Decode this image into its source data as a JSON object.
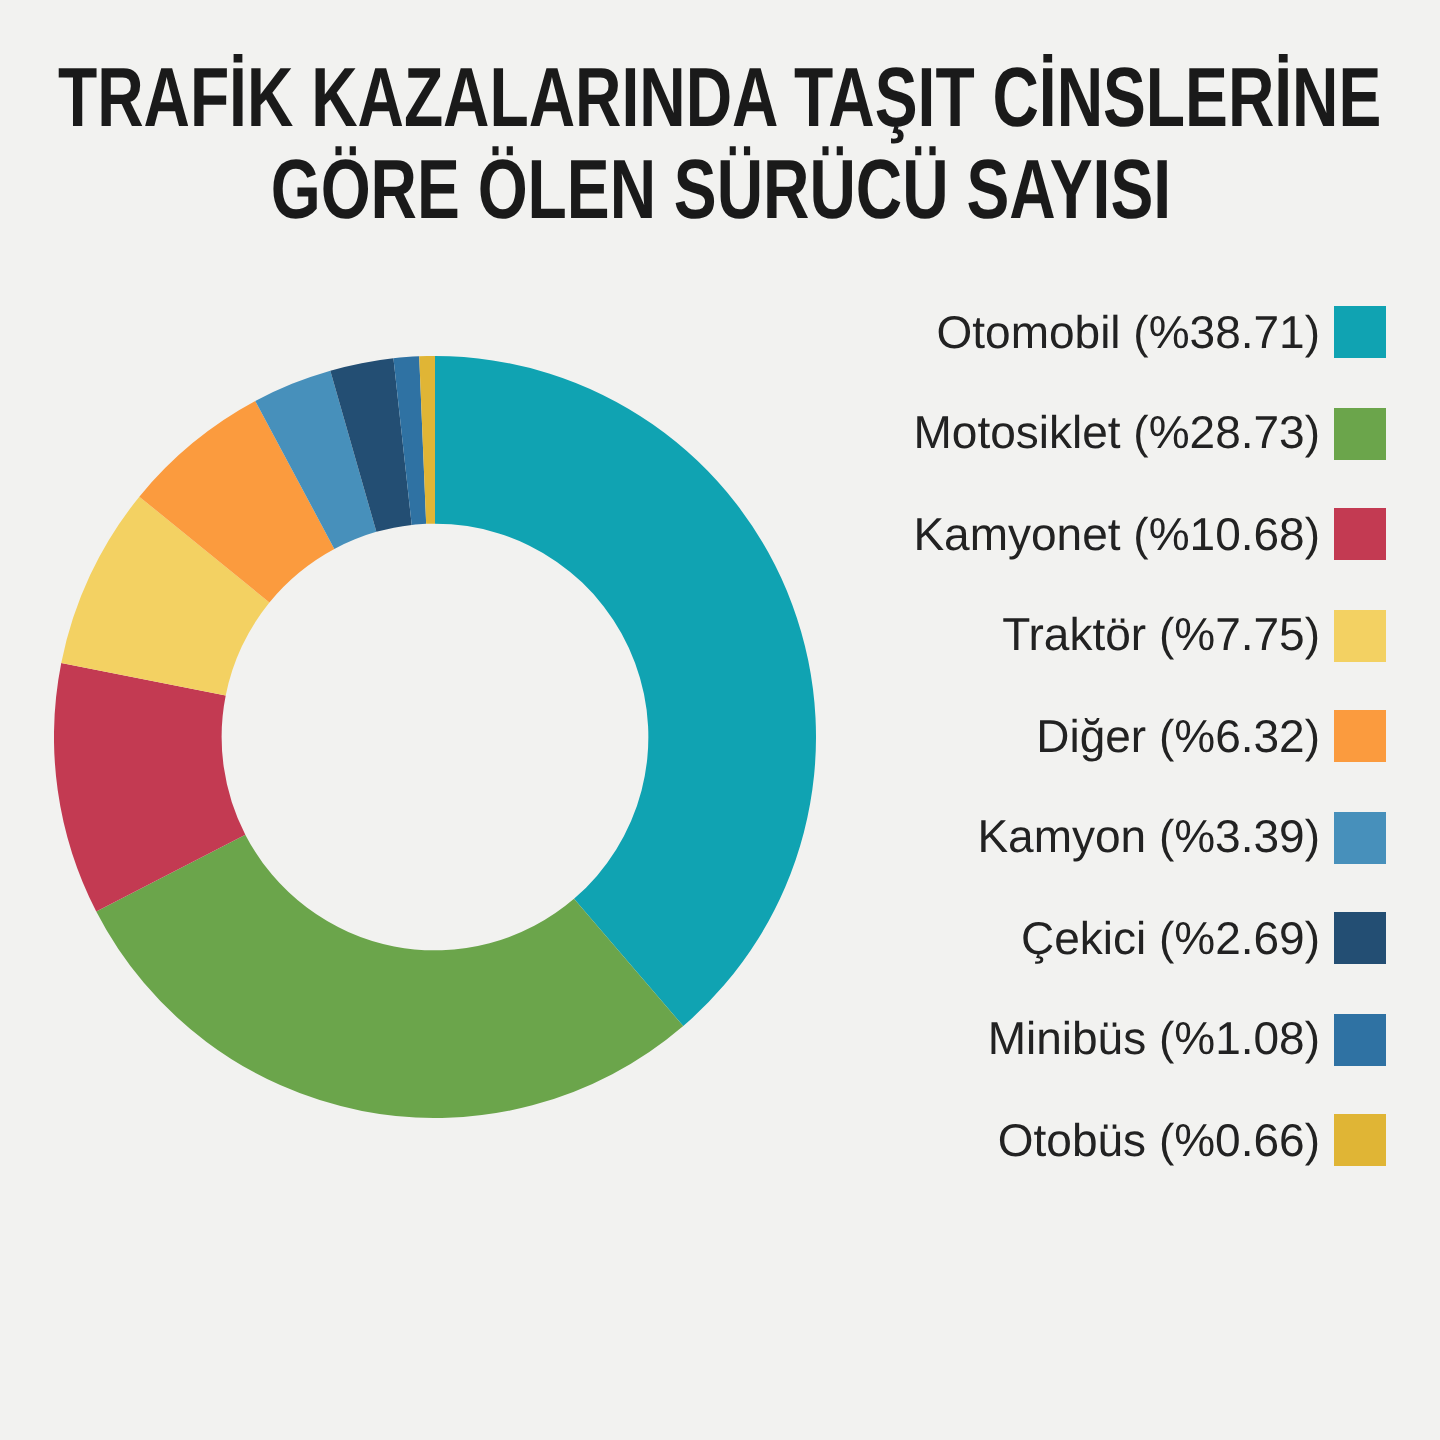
{
  "chart_data": {
    "type": "donut",
    "title": "TRAFİK KAZALARINDA TAŞIT CİNSLERİNE\nGÖRE ÖLEN SÜRÜCÜ SAYISI",
    "categories": [
      "Otomobil (%38.71)",
      "Motosiklet (%28.73)",
      "Kamyonet (%10.68)",
      "Traktör (%7.75)",
      "Diğer (%6.32)",
      "Kamyon (%3.39)",
      "Çekici (%2.69)",
      "Minibüs (%1.08)",
      "Otobüs (%0.66)"
    ],
    "values": [
      38.71,
      28.73,
      10.68,
      7.75,
      6.32,
      3.39,
      2.69,
      1.08,
      0.66
    ],
    "colors": [
      "#10a3b2",
      "#6ba54b",
      "#c33a52",
      "#f3d162",
      "#fb9b3e",
      "#4790bb",
      "#234e73",
      "#2f72a3",
      "#e0b535"
    ],
    "legend": "right"
  }
}
